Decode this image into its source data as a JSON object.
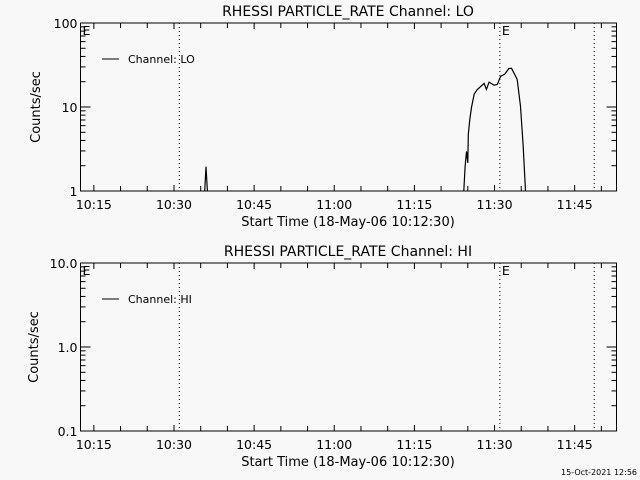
{
  "footer": {
    "timestamp": "15-Oct-2021 12:56"
  },
  "chart_data": [
    {
      "type": "line",
      "title": "RHESSI PARTICLE_RATE Channel: LO",
      "xlabel": "Start Time (18-May-06 10:12:30)",
      "ylabel": "Counts/sec",
      "yscale": "log",
      "ylim": [
        1,
        100
      ],
      "xlim": [
        "10:12:30",
        "11:52:50"
      ],
      "x_ticks": [
        "10:15",
        "10:30",
        "10:45",
        "11:00",
        "11:15",
        "11:30",
        "11:45"
      ],
      "y_ticks": [
        "1",
        "10",
        "100"
      ],
      "legend": {
        "position": "top-left",
        "entries": [
          "Channel: LO"
        ]
      },
      "vertical_markers": [
        "10:31:00",
        "11:31:00",
        "11:48:40"
      ],
      "annotations": [
        {
          "text": "E",
          "at": "10:12:30"
        },
        {
          "text": "E",
          "at": "11:31:00"
        }
      ],
      "grid": false,
      "line_color": "#000000",
      "series": [
        {
          "name": "Channel: LO",
          "x": [
            "10:35:45",
            "10:36:00",
            "10:36:15",
            "11:24:15",
            "11:24:30",
            "11:24:45",
            "11:25:00",
            "11:25:06",
            "11:25:22",
            "11:25:41",
            "11:26:12",
            "11:26:48",
            "11:28:03",
            "11:28:29",
            "11:28:59",
            "11:29:55",
            "11:30:32",
            "11:31:08",
            "11:31:53",
            "11:32:42",
            "11:33:11",
            "11:34:15",
            "11:34:52",
            "11:35:22",
            "11:35:48"
          ],
          "y": [
            1.0,
            1.95,
            1.0,
            1.0,
            1.95,
            2.96,
            2.16,
            4.7,
            7.1,
            9.9,
            14.3,
            16.2,
            19.1,
            16.2,
            19.8,
            18.2,
            18.6,
            23.2,
            24.5,
            28.7,
            28.9,
            21.3,
            10.2,
            3.4,
            1.0
          ]
        }
      ]
    },
    {
      "type": "line",
      "title": "RHESSI PARTICLE_RATE Channel: HI",
      "xlabel": "Start Time (18-May-06 10:12:30)",
      "ylabel": "Counts/sec",
      "yscale": "log",
      "ylim": [
        0.1,
        10
      ],
      "xlim": [
        "10:12:30",
        "11:52:50"
      ],
      "x_ticks": [
        "10:15",
        "10:30",
        "10:45",
        "11:00",
        "11:15",
        "11:30",
        "11:45"
      ],
      "y_ticks": [
        "0.1",
        "1.0",
        "10.0"
      ],
      "legend": {
        "position": "top-left",
        "entries": [
          "Channel: HI"
        ]
      },
      "vertical_markers": [
        "10:31:00",
        "11:31:00",
        "11:48:40"
      ],
      "annotations": [
        {
          "text": "E",
          "at": "10:12:30"
        },
        {
          "text": "E",
          "at": "11:31:00"
        }
      ],
      "grid": false,
      "line_color": "#000000",
      "series": [
        {
          "name": "Channel: HI",
          "x": [],
          "y": []
        }
      ]
    }
  ]
}
